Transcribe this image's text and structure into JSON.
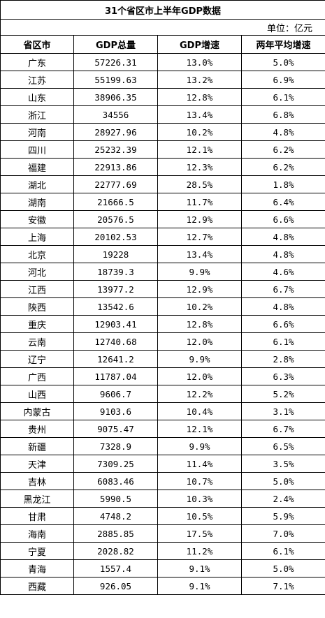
{
  "title": "31个省区市上半年GDP数据",
  "unit": "单位：亿元",
  "headers": [
    "省区市",
    "GDP总量",
    "GDP增速",
    "两年平均增速"
  ],
  "rows": [
    [
      "广东",
      "57226.31",
      "13.0%",
      "5.0%"
    ],
    [
      "江苏",
      "55199.63",
      "13.2%",
      "6.9%"
    ],
    [
      "山东",
      "38906.35",
      "12.8%",
      "6.1%"
    ],
    [
      "浙江",
      "34556",
      "13.4%",
      "6.8%"
    ],
    [
      "河南",
      "28927.96",
      "10.2%",
      "4.8%"
    ],
    [
      "四川",
      "25232.39",
      "12.1%",
      "6.2%"
    ],
    [
      "福建",
      "22913.86",
      "12.3%",
      "6.2%"
    ],
    [
      "湖北",
      "22777.69",
      "28.5%",
      "1.8%"
    ],
    [
      "湖南",
      "21666.5",
      "11.7%",
      "6.4%"
    ],
    [
      "安徽",
      "20576.5",
      "12.9%",
      "6.6%"
    ],
    [
      "上海",
      "20102.53",
      "12.7%",
      "4.8%"
    ],
    [
      "北京",
      "19228",
      "13.4%",
      "4.8%"
    ],
    [
      "河北",
      "18739.3",
      "9.9%",
      "4.6%"
    ],
    [
      "江西",
      "13977.2",
      "12.9%",
      "6.7%"
    ],
    [
      "陕西",
      "13542.6",
      "10.2%",
      "4.8%"
    ],
    [
      "重庆",
      "12903.41",
      "12.8%",
      "6.6%"
    ],
    [
      "云南",
      "12740.68",
      "12.0%",
      "6.1%"
    ],
    [
      "辽宁",
      "12641.2",
      "9.9%",
      "2.8%"
    ],
    [
      "广西",
      "11787.04",
      "12.0%",
      "6.3%"
    ],
    [
      "山西",
      "9606.7",
      "12.2%",
      "5.2%"
    ],
    [
      "内蒙古",
      "9103.6",
      "10.4%",
      "3.1%"
    ],
    [
      "贵州",
      "9075.47",
      "12.1%",
      "6.7%"
    ],
    [
      "新疆",
      "7328.9",
      "9.9%",
      "6.5%"
    ],
    [
      "天津",
      "7309.25",
      "11.4%",
      "3.5%"
    ],
    [
      "吉林",
      "6083.46",
      "10.7%",
      "5.0%"
    ],
    [
      "黑龙江",
      "5990.5",
      "10.3%",
      "2.4%"
    ],
    [
      "甘肃",
      "4748.2",
      "10.5%",
      "5.9%"
    ],
    [
      "海南",
      "2885.85",
      "17.5%",
      "7.0%"
    ],
    [
      "宁夏",
      "2028.82",
      "11.2%",
      "6.1%"
    ],
    [
      "青海",
      "1557.4",
      "9.1%",
      "5.0%"
    ],
    [
      "西藏",
      "926.05",
      "9.1%",
      "7.1%"
    ]
  ]
}
